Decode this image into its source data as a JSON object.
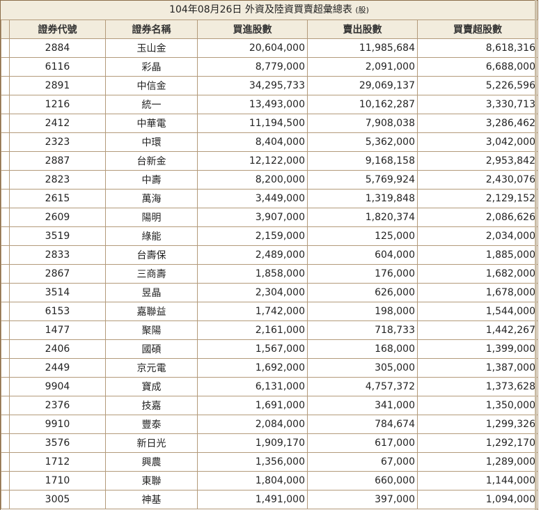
{
  "caption": {
    "title": "104年08月26日 外資及陸資買賣超彙總表",
    "unit": "(股)"
  },
  "headers": [
    "證券代號",
    "證券名稱",
    "買進股數",
    "賣出股數",
    "買賣超股數"
  ],
  "rows": [
    {
      "code": "2884",
      "name": "玉山金",
      "buy": "20,604,000",
      "sell": "11,985,684",
      "net": "8,618,316"
    },
    {
      "code": "6116",
      "name": "彩晶",
      "buy": "8,779,000",
      "sell": "2,091,000",
      "net": "6,688,000"
    },
    {
      "code": "2891",
      "name": "中信金",
      "buy": "34,295,733",
      "sell": "29,069,137",
      "net": "5,226,596"
    },
    {
      "code": "1216",
      "name": "統一",
      "buy": "13,493,000",
      "sell": "10,162,287",
      "net": "3,330,713"
    },
    {
      "code": "2412",
      "name": "中華電",
      "buy": "11,194,500",
      "sell": "7,908,038",
      "net": "3,286,462"
    },
    {
      "code": "2323",
      "name": "中環",
      "buy": "8,404,000",
      "sell": "5,362,000",
      "net": "3,042,000"
    },
    {
      "code": "2887",
      "name": "台新金",
      "buy": "12,122,000",
      "sell": "9,168,158",
      "net": "2,953,842"
    },
    {
      "code": "2823",
      "name": "中壽",
      "buy": "8,200,000",
      "sell": "5,769,924",
      "net": "2,430,076"
    },
    {
      "code": "2615",
      "name": "萬海",
      "buy": "3,449,000",
      "sell": "1,319,848",
      "net": "2,129,152"
    },
    {
      "code": "2609",
      "name": "陽明",
      "buy": "3,907,000",
      "sell": "1,820,374",
      "net": "2,086,626"
    },
    {
      "code": "3519",
      "name": "綠能",
      "buy": "2,159,000",
      "sell": "125,000",
      "net": "2,034,000"
    },
    {
      "code": "2833",
      "name": "台壽保",
      "buy": "2,489,000",
      "sell": "604,000",
      "net": "1,885,000"
    },
    {
      "code": "2867",
      "name": "三商壽",
      "buy": "1,858,000",
      "sell": "176,000",
      "net": "1,682,000"
    },
    {
      "code": "3514",
      "name": "昱晶",
      "buy": "2,304,000",
      "sell": "626,000",
      "net": "1,678,000"
    },
    {
      "code": "6153",
      "name": "嘉聯益",
      "buy": "1,742,000",
      "sell": "198,000",
      "net": "1,544,000"
    },
    {
      "code": "1477",
      "name": "聚陽",
      "buy": "2,161,000",
      "sell": "718,733",
      "net": "1,442,267"
    },
    {
      "code": "2406",
      "name": "國碩",
      "buy": "1,567,000",
      "sell": "168,000",
      "net": "1,399,000"
    },
    {
      "code": "2449",
      "name": "京元電",
      "buy": "1,692,000",
      "sell": "305,000",
      "net": "1,387,000"
    },
    {
      "code": "9904",
      "name": "寶成",
      "buy": "6,131,000",
      "sell": "4,757,372",
      "net": "1,373,628"
    },
    {
      "code": "2376",
      "name": "技嘉",
      "buy": "1,691,000",
      "sell": "341,000",
      "net": "1,350,000"
    },
    {
      "code": "9910",
      "name": "豐泰",
      "buy": "2,084,000",
      "sell": "784,674",
      "net": "1,299,326"
    },
    {
      "code": "3576",
      "name": "新日光",
      "buy": "1,909,170",
      "sell": "617,000",
      "net": "1,292,170"
    },
    {
      "code": "1712",
      "name": "興農",
      "buy": "1,356,000",
      "sell": "67,000",
      "net": "1,289,000"
    },
    {
      "code": "1710",
      "name": "東聯",
      "buy": "1,804,000",
      "sell": "660,000",
      "net": "1,144,000"
    },
    {
      "code": "3005",
      "name": "神基",
      "buy": "1,491,000",
      "sell": "397,000",
      "net": "1,094,000"
    }
  ]
}
